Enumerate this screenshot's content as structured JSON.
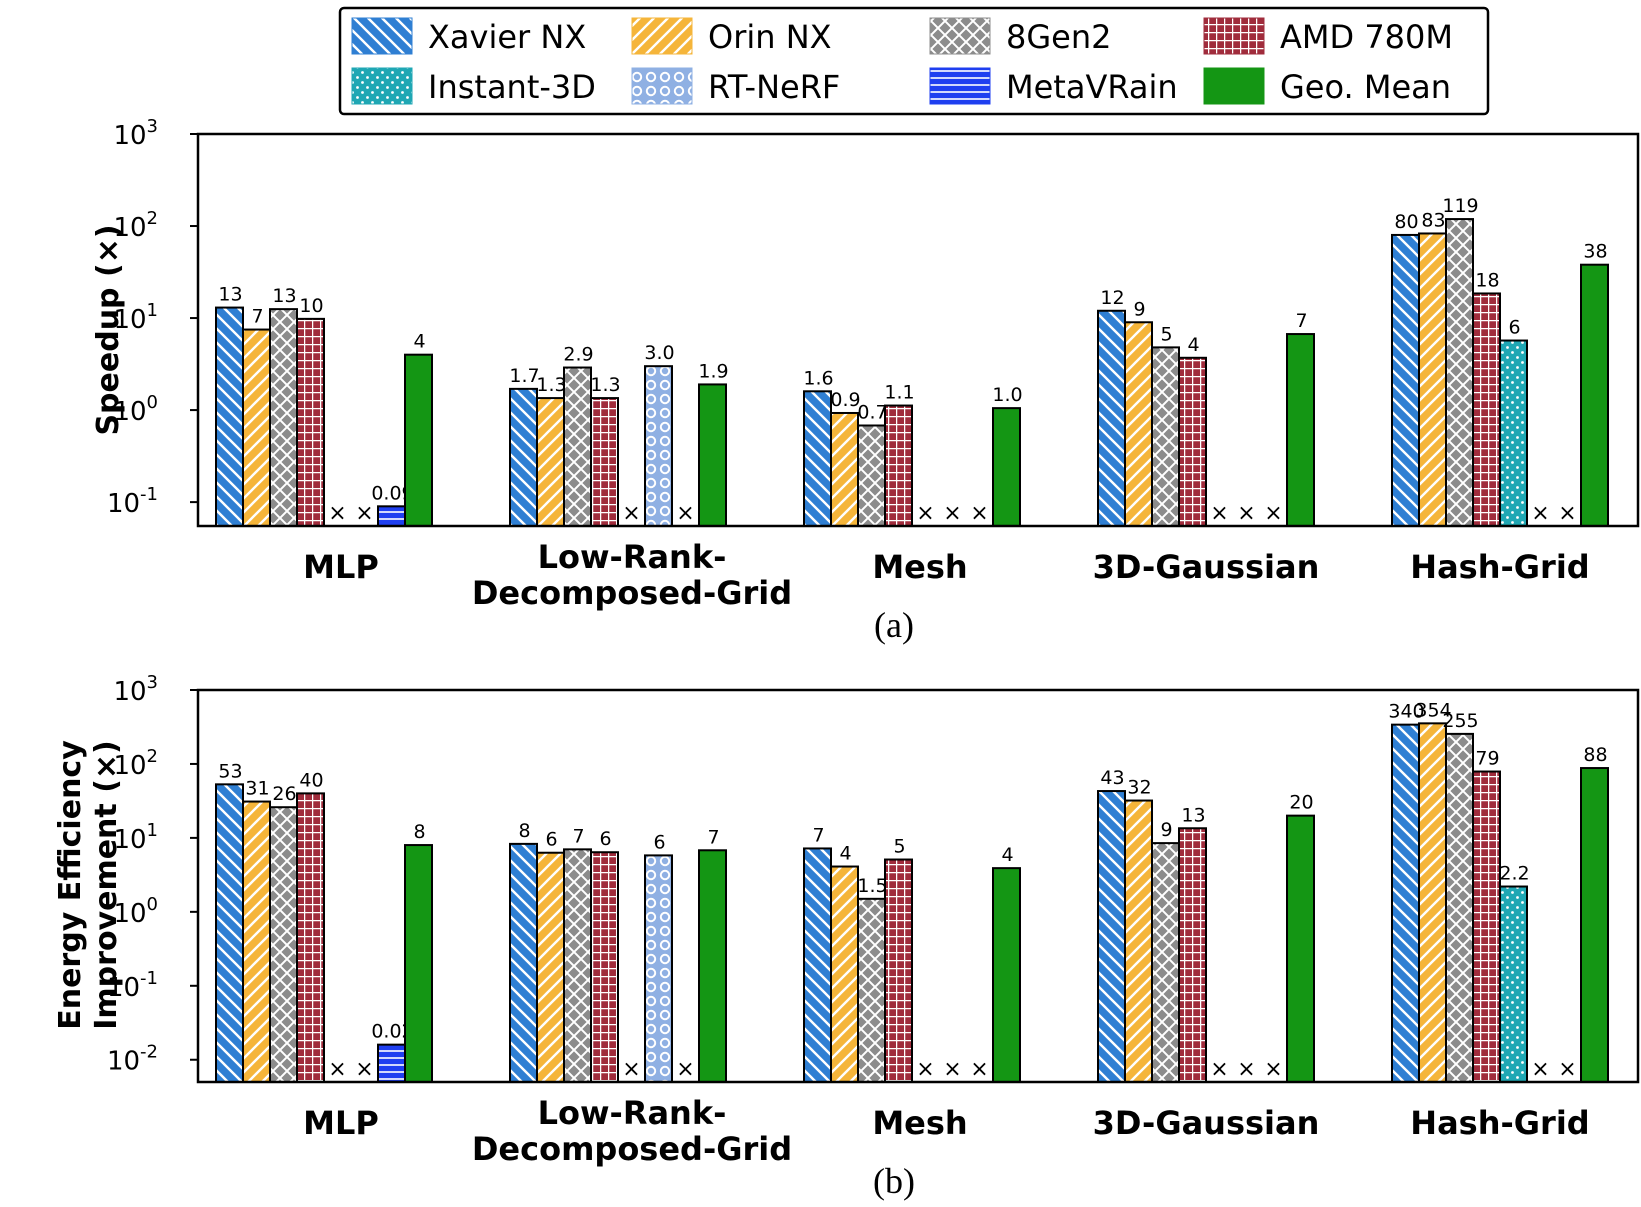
{
  "legend": [
    {
      "name": "Xavier NX",
      "color": "#2f7fd3",
      "pattern": "back"
    },
    {
      "name": "Orin NX",
      "color": "#f5b53a",
      "pattern": "fwd"
    },
    {
      "name": "8Gen2",
      "color": "#8c8c8c",
      "pattern": "cross"
    },
    {
      "name": "AMD 780M",
      "color": "#a02c3c",
      "pattern": "grid"
    },
    {
      "name": "Instant-3D",
      "color": "#1fa7b4",
      "pattern": "dots"
    },
    {
      "name": "RT-NeRF",
      "color": "#8fb0e3",
      "pattern": "rings"
    },
    {
      "name": "MetaVRain",
      "color": "#1f3ff0",
      "pattern": "hlines"
    },
    {
      "name": "Geo. Mean",
      "color": "#149614",
      "pattern": "solid"
    }
  ],
  "chart_data": [
    {
      "type": "bar",
      "id": "a",
      "caption": "(a)",
      "ylabel": "Speedup (×)",
      "yscale": "log",
      "ylim": [
        0.055,
        1000
      ],
      "yticks": [
        {
          "base": "10",
          "exp": "-1",
          "value": 0.1
        },
        {
          "base": "10",
          "exp": "0",
          "value": 1
        },
        {
          "base": "10",
          "exp": "1",
          "value": 10
        },
        {
          "base": "10",
          "exp": "2",
          "value": 100
        },
        {
          "base": "10",
          "exp": "3",
          "value": 1000
        }
      ],
      "categories": [
        {
          "line1": "MLP",
          "line2": ""
        },
        {
          "line1": "Low-Rank-",
          "line2": "Decomposed-Grid"
        },
        {
          "line1": "Mesh",
          "line2": ""
        },
        {
          "line1": "3D-Gaussian",
          "line2": ""
        },
        {
          "line1": "Hash-Grid",
          "line2": ""
        }
      ],
      "na_mark": "×",
      "series": [
        {
          "name": "Xavier NX",
          "values": [
            13,
            1.7,
            1.6,
            12,
            80
          ],
          "labels": [
            "13",
            "1.7",
            "1.6",
            "12",
            "80"
          ]
        },
        {
          "name": "Orin NX",
          "values": [
            7.5,
            1.35,
            0.93,
            9,
            83
          ],
          "labels": [
            "7",
            "1.3",
            "0.9",
            "9",
            "83"
          ]
        },
        {
          "name": "8Gen2",
          "values": [
            12.5,
            2.9,
            0.68,
            4.8,
            119
          ],
          "labels": [
            "13",
            "2.9",
            "0.7",
            "5",
            "119"
          ]
        },
        {
          "name": "AMD 780M",
          "values": [
            9.8,
            1.35,
            1.12,
            3.7,
            18.5
          ],
          "labels": [
            "10",
            "1.3",
            "1.1",
            "4",
            "18"
          ]
        },
        {
          "name": "Instant-3D",
          "values": [
            null,
            null,
            null,
            null,
            5.7
          ],
          "labels": [
            "",
            "",
            "",
            "",
            "6"
          ]
        },
        {
          "name": "RT-NeRF",
          "values": [
            null,
            3.0,
            null,
            null,
            null
          ],
          "labels": [
            "",
            "3.0",
            "",
            "",
            ""
          ]
        },
        {
          "name": "MetaVRain",
          "values": [
            0.09,
            null,
            null,
            null,
            null
          ],
          "labels": [
            "0.09",
            "",
            "",
            "",
            ""
          ]
        },
        {
          "name": "Geo. Mean",
          "values": [
            4.0,
            1.9,
            1.05,
            6.7,
            38
          ],
          "labels": [
            "4",
            "1.9",
            "1.0",
            "7",
            "38"
          ]
        }
      ]
    },
    {
      "type": "bar",
      "id": "b",
      "caption": "(b)",
      "ylabel": [
        "Energy Efficiency",
        "Improvement (×)"
      ],
      "yscale": "log",
      "ylim": [
        0.005,
        1000
      ],
      "yticks": [
        {
          "base": "10",
          "exp": "-2",
          "value": 0.01
        },
        {
          "base": "10",
          "exp": "-1",
          "value": 0.1
        },
        {
          "base": "10",
          "exp": "0",
          "value": 1
        },
        {
          "base": "10",
          "exp": "1",
          "value": 10
        },
        {
          "base": "10",
          "exp": "2",
          "value": 100
        },
        {
          "base": "10",
          "exp": "3",
          "value": 1000
        }
      ],
      "categories": [
        {
          "line1": "MLP",
          "line2": ""
        },
        {
          "line1": "Low-Rank-",
          "line2": "Decomposed-Grid"
        },
        {
          "line1": "Mesh",
          "line2": ""
        },
        {
          "line1": "3D-Gaussian",
          "line2": ""
        },
        {
          "line1": "Hash-Grid",
          "line2": ""
        }
      ],
      "na_mark": "×",
      "series": [
        {
          "name": "Xavier NX",
          "values": [
            53,
            8.3,
            7.2,
            43,
            340
          ],
          "labels": [
            "53",
            "8",
            "7",
            "43",
            "340"
          ]
        },
        {
          "name": "Orin NX",
          "values": [
            31,
            6.3,
            4.1,
            32,
            354
          ],
          "labels": [
            "31",
            "6",
            "4",
            "32",
            "354"
          ]
        },
        {
          "name": "8Gen2",
          "values": [
            26,
            7,
            1.5,
            8.5,
            255
          ],
          "labels": [
            "26",
            "7",
            "1.5",
            "9",
            "255"
          ]
        },
        {
          "name": "AMD 780M",
          "values": [
            40,
            6.4,
            5.1,
            13.5,
            79
          ],
          "labels": [
            "40",
            "6",
            "5",
            "13",
            "79"
          ]
        },
        {
          "name": "Instant-3D",
          "values": [
            null,
            null,
            null,
            null,
            2.2
          ],
          "labels": [
            "",
            "",
            "",
            "",
            "2.2"
          ]
        },
        {
          "name": "RT-NeRF",
          "values": [
            null,
            5.8,
            null,
            null,
            null
          ],
          "labels": [
            "",
            "6",
            "",
            "",
            ""
          ]
        },
        {
          "name": "MetaVRain",
          "values": [
            0.016,
            null,
            null,
            null,
            null
          ],
          "labels": [
            "0.02",
            "",
            "",
            "",
            ""
          ]
        },
        {
          "name": "Geo. Mean",
          "values": [
            8,
            6.8,
            3.9,
            20,
            88
          ],
          "labels": [
            "8",
            "7",
            "4",
            "20",
            "88"
          ]
        }
      ]
    }
  ]
}
